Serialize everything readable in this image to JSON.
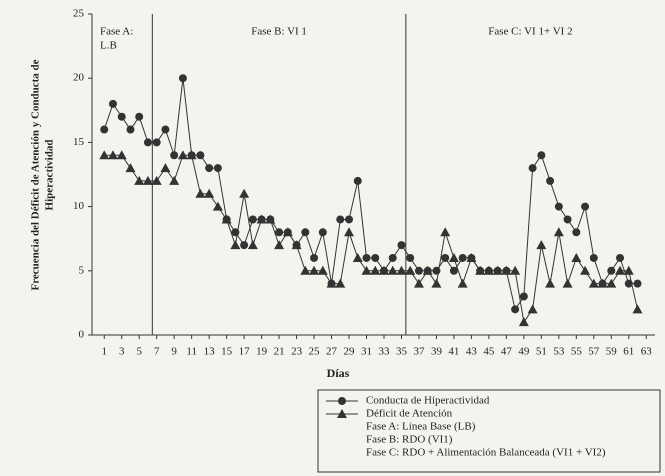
{
  "chart_data": {
    "type": "line",
    "xlabel": "Días",
    "ylabel": [
      "Frecuencia del Déficit de Atención y Conducta de",
      "Hiperactividad"
    ],
    "x": [
      1,
      2,
      3,
      4,
      5,
      6,
      7,
      8,
      9,
      10,
      11,
      12,
      13,
      14,
      15,
      16,
      17,
      18,
      19,
      20,
      21,
      22,
      23,
      24,
      25,
      26,
      27,
      28,
      29,
      30,
      31,
      32,
      33,
      34,
      35,
      36,
      37,
      38,
      39,
      40,
      41,
      42,
      43,
      44,
      45,
      46,
      47,
      48,
      49,
      50,
      51,
      52,
      53,
      54,
      55,
      56,
      57,
      58,
      59,
      60,
      61,
      62
    ],
    "series": [
      {
        "name": "Conducta de Hiperactividad",
        "marker": "circle",
        "color": "#333333",
        "values": [
          16,
          18,
          17,
          16,
          17,
          15,
          15,
          16,
          14,
          20,
          14,
          14,
          13,
          13,
          9,
          8,
          7,
          9,
          9,
          9,
          8,
          8,
          7,
          8,
          6,
          8,
          4,
          9,
          9,
          12,
          6,
          6,
          5,
          6,
          7,
          6,
          5,
          5,
          5,
          6,
          5,
          6,
          6,
          5,
          5,
          5,
          5,
          2,
          3,
          13,
          14,
          12,
          10,
          9,
          8,
          10,
          6,
          4,
          5,
          6,
          4,
          4
        ]
      },
      {
        "name": "Déficit de Atención",
        "marker": "triangle",
        "color": "#333333",
        "values": [
          14,
          14,
          14,
          13,
          12,
          12,
          12,
          13,
          12,
          14,
          14,
          11,
          11,
          10,
          9,
          7,
          11,
          7,
          9,
          9,
          7,
          8,
          7,
          5,
          5,
          5,
          4,
          4,
          8,
          6,
          5,
          5,
          5,
          5,
          5,
          5,
          4,
          5,
          4,
          8,
          6,
          4,
          6,
          5,
          5,
          5,
          5,
          5,
          1,
          2,
          7,
          4,
          8,
          4,
          6,
          5,
          4,
          4,
          4,
          5,
          5,
          2
        ]
      }
    ],
    "phase_changes": [
      6.5,
      35.5
    ],
    "phase_labels": [
      [
        "Fase A:",
        "L.B"
      ],
      [
        "Fase B: VI 1"
      ],
      [
        "Fase C: VI 1+ VI 2"
      ]
    ],
    "notes": [
      "Fase A: Línea Base (LB)",
      "Fase B: RDO (VI1)",
      "Fase C: RDO + Alimentación Balanceada (VI1 + VI2)"
    ],
    "xlim": [
      -0.4,
      64
    ],
    "xticks": [
      1,
      3,
      5,
      7,
      9,
      11,
      13,
      15,
      17,
      19,
      21,
      23,
      25,
      27,
      29,
      31,
      33,
      35,
      37,
      39,
      41,
      43,
      45,
      47,
      49,
      51,
      53,
      55,
      57,
      59,
      61,
      63
    ],
    "ylim": [
      0,
      25
    ],
    "yticks": [
      0,
      5,
      10,
      15,
      20,
      25
    ]
  }
}
